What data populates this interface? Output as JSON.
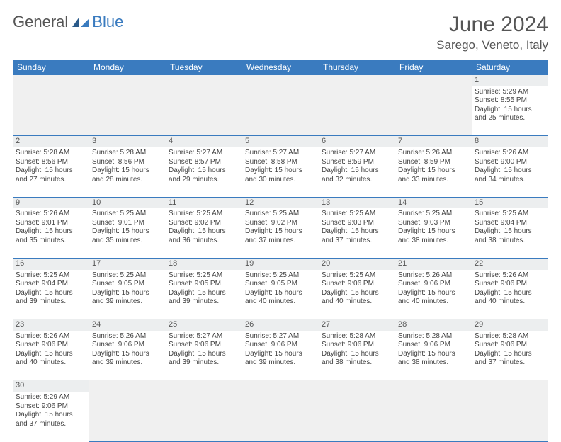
{
  "logo": {
    "text1": "General",
    "text2": "Blue"
  },
  "title": "June 2024",
  "location": "Sarego, Veneto, Italy",
  "colors": {
    "header_bg": "#3a7bbf",
    "header_text": "#ffffff",
    "daynum_bg": "#eceeef",
    "cell_border": "#3a7bbf",
    "text": "#444444",
    "title_text": "#555555"
  },
  "weekdays": [
    "Sunday",
    "Monday",
    "Tuesday",
    "Wednesday",
    "Thursday",
    "Friday",
    "Saturday"
  ],
  "weeks": [
    [
      null,
      null,
      null,
      null,
      null,
      null,
      {
        "n": "1",
        "sr": "5:29 AM",
        "ss": "8:55 PM",
        "dl": "15 hours and 25 minutes."
      }
    ],
    [
      {
        "n": "2",
        "sr": "5:28 AM",
        "ss": "8:56 PM",
        "dl": "15 hours and 27 minutes."
      },
      {
        "n": "3",
        "sr": "5:28 AM",
        "ss": "8:56 PM",
        "dl": "15 hours and 28 minutes."
      },
      {
        "n": "4",
        "sr": "5:27 AM",
        "ss": "8:57 PM",
        "dl": "15 hours and 29 minutes."
      },
      {
        "n": "5",
        "sr": "5:27 AM",
        "ss": "8:58 PM",
        "dl": "15 hours and 30 minutes."
      },
      {
        "n": "6",
        "sr": "5:27 AM",
        "ss": "8:59 PM",
        "dl": "15 hours and 32 minutes."
      },
      {
        "n": "7",
        "sr": "5:26 AM",
        "ss": "8:59 PM",
        "dl": "15 hours and 33 minutes."
      },
      {
        "n": "8",
        "sr": "5:26 AM",
        "ss": "9:00 PM",
        "dl": "15 hours and 34 minutes."
      }
    ],
    [
      {
        "n": "9",
        "sr": "5:26 AM",
        "ss": "9:01 PM",
        "dl": "15 hours and 35 minutes."
      },
      {
        "n": "10",
        "sr": "5:25 AM",
        "ss": "9:01 PM",
        "dl": "15 hours and 35 minutes."
      },
      {
        "n": "11",
        "sr": "5:25 AM",
        "ss": "9:02 PM",
        "dl": "15 hours and 36 minutes."
      },
      {
        "n": "12",
        "sr": "5:25 AM",
        "ss": "9:02 PM",
        "dl": "15 hours and 37 minutes."
      },
      {
        "n": "13",
        "sr": "5:25 AM",
        "ss": "9:03 PM",
        "dl": "15 hours and 37 minutes."
      },
      {
        "n": "14",
        "sr": "5:25 AM",
        "ss": "9:03 PM",
        "dl": "15 hours and 38 minutes."
      },
      {
        "n": "15",
        "sr": "5:25 AM",
        "ss": "9:04 PM",
        "dl": "15 hours and 38 minutes."
      }
    ],
    [
      {
        "n": "16",
        "sr": "5:25 AM",
        "ss": "9:04 PM",
        "dl": "15 hours and 39 minutes."
      },
      {
        "n": "17",
        "sr": "5:25 AM",
        "ss": "9:05 PM",
        "dl": "15 hours and 39 minutes."
      },
      {
        "n": "18",
        "sr": "5:25 AM",
        "ss": "9:05 PM",
        "dl": "15 hours and 39 minutes."
      },
      {
        "n": "19",
        "sr": "5:25 AM",
        "ss": "9:05 PM",
        "dl": "15 hours and 40 minutes."
      },
      {
        "n": "20",
        "sr": "5:25 AM",
        "ss": "9:06 PM",
        "dl": "15 hours and 40 minutes."
      },
      {
        "n": "21",
        "sr": "5:26 AM",
        "ss": "9:06 PM",
        "dl": "15 hours and 40 minutes."
      },
      {
        "n": "22",
        "sr": "5:26 AM",
        "ss": "9:06 PM",
        "dl": "15 hours and 40 minutes."
      }
    ],
    [
      {
        "n": "23",
        "sr": "5:26 AM",
        "ss": "9:06 PM",
        "dl": "15 hours and 40 minutes."
      },
      {
        "n": "24",
        "sr": "5:26 AM",
        "ss": "9:06 PM",
        "dl": "15 hours and 39 minutes."
      },
      {
        "n": "25",
        "sr": "5:27 AM",
        "ss": "9:06 PM",
        "dl": "15 hours and 39 minutes."
      },
      {
        "n": "26",
        "sr": "5:27 AM",
        "ss": "9:06 PM",
        "dl": "15 hours and 39 minutes."
      },
      {
        "n": "27",
        "sr": "5:28 AM",
        "ss": "9:06 PM",
        "dl": "15 hours and 38 minutes."
      },
      {
        "n": "28",
        "sr": "5:28 AM",
        "ss": "9:06 PM",
        "dl": "15 hours and 38 minutes."
      },
      {
        "n": "29",
        "sr": "5:28 AM",
        "ss": "9:06 PM",
        "dl": "15 hours and 37 minutes."
      }
    ],
    [
      {
        "n": "30",
        "sr": "5:29 AM",
        "ss": "9:06 PM",
        "dl": "15 hours and 37 minutes."
      },
      null,
      null,
      null,
      null,
      null,
      null
    ]
  ],
  "labels": {
    "sunrise": "Sunrise:",
    "sunset": "Sunset:",
    "daylight": "Daylight:"
  }
}
